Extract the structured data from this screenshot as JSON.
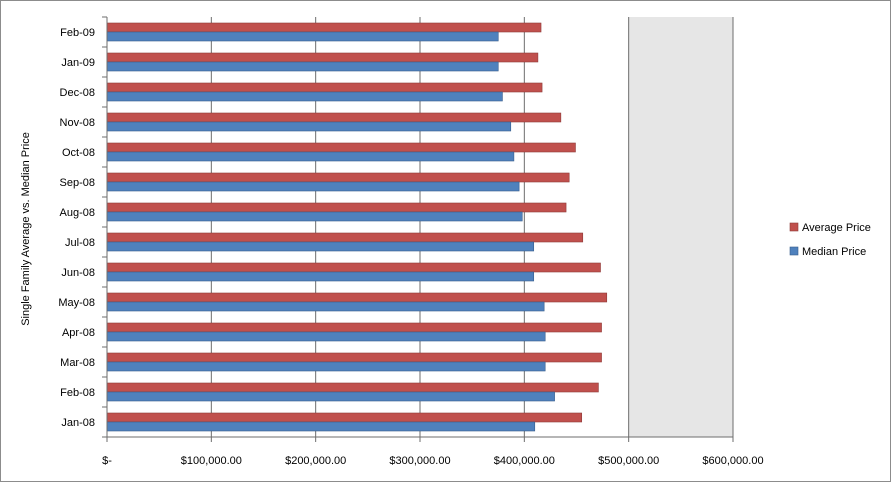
{
  "chart_data": {
    "type": "bar",
    "orientation": "horizontal",
    "title": "",
    "xlabel": "",
    "ylabel": "Single Family Average vs. Median Price",
    "categories": [
      "Feb-09",
      "Jan-09",
      "Dec-08",
      "Nov-08",
      "Oct-08",
      "Sep-08",
      "Aug-08",
      "Jul-08",
      "Jun-08",
      "May-08",
      "Apr-08",
      "Mar-08",
      "Feb-08",
      "Jan-08"
    ],
    "series": [
      {
        "name": "Average Price",
        "color": "#c0504d",
        "values": [
          416000,
          413000,
          417000,
          435000,
          449000,
          443000,
          440000,
          456000,
          473000,
          479000,
          474000,
          474000,
          471000,
          455000
        ]
      },
      {
        "name": "Median Price",
        "color": "#4f81bd",
        "values": [
          375000,
          375000,
          379000,
          387000,
          390000,
          395000,
          398000,
          409000,
          409000,
          419000,
          420000,
          420000,
          429000,
          410000
        ]
      }
    ],
    "xlim": [
      0,
      600000
    ],
    "xticks": [
      0,
      100000,
      200000,
      300000,
      400000,
      500000,
      600000
    ],
    "xtick_labels": [
      "$-",
      "$100,000.00",
      "$200,000.00",
      "$300,000.00",
      "$400,000.00",
      "$500,000.00",
      "$600,000.00"
    ],
    "grid": "vertical major",
    "legend": {
      "placement": "right",
      "entries": [
        "Average Price",
        "Median Price"
      ]
    }
  }
}
